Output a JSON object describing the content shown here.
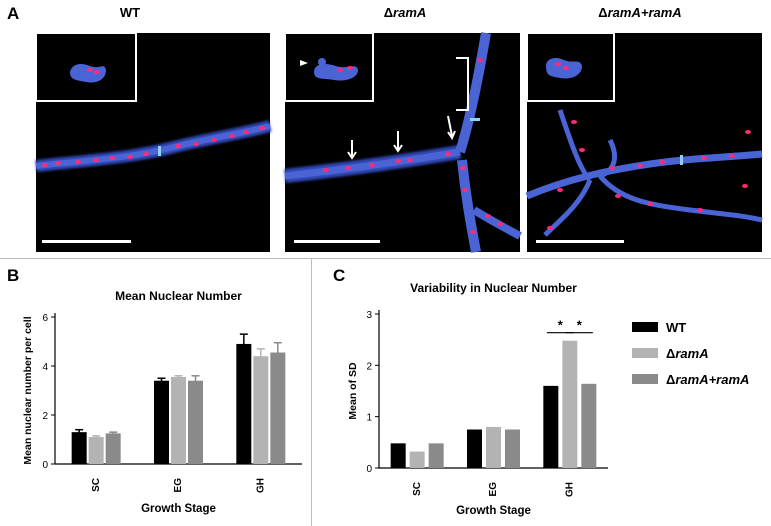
{
  "panel_a": {
    "letter": "A",
    "titles": [
      {
        "text": "WT",
        "italic": false
      },
      {
        "prefix": "Δ",
        "text": "ramA",
        "italic": true
      },
      {
        "prefix": "Δ",
        "text": "ramA+ramA",
        "italic": true
      }
    ]
  },
  "panel_b": {
    "letter": "B"
  },
  "panel_c": {
    "letter": "C"
  },
  "colors": {
    "wt": "#000000",
    "ramA": "#b3b3b3",
    "complement": "#8a8a8a",
    "hypha": "#3d56c8",
    "nucleus": "#ff2a7a"
  },
  "legend": [
    {
      "prefix": "",
      "text": "WT",
      "italic": false,
      "color": "#000000"
    },
    {
      "prefix": "Δ",
      "text": "ramA",
      "italic": true,
      "color": "#b3b3b3"
    },
    {
      "prefix": "Δ",
      "text": "ramA+ramA",
      "italic": true,
      "color": "#8a8a8a"
    }
  ],
  "chart_data": [
    {
      "type": "bar",
      "title": "Mean Nuclear Number",
      "xlabel": "Growth Stage",
      "ylabel": "Mean nuclear number per cell",
      "categories": [
        "SC",
        "EG",
        "GH"
      ],
      "ylim": [
        0,
        6
      ],
      "yticks": [
        0,
        2,
        4,
        6
      ],
      "series": [
        {
          "values": [
            1.3,
            3.4,
            4.9
          ],
          "errors": [
            0.1,
            0.1,
            0.4
          ]
        },
        {
          "values": [
            1.1,
            3.55,
            4.4
          ],
          "errors": [
            0.05,
            0.05,
            0.3
          ]
        },
        {
          "values": [
            1.25,
            3.4,
            4.55
          ],
          "errors": [
            0.05,
            0.2,
            0.4
          ]
        }
      ],
      "grid": false
    },
    {
      "type": "bar",
      "title": "Variability in Nuclear Number",
      "xlabel": "Growth Stage",
      "ylabel": "Mean of SD",
      "categories": [
        "SC",
        "EG",
        "GH"
      ],
      "ylim": [
        0,
        3
      ],
      "yticks": [
        0,
        1,
        2,
        3
      ],
      "series": [
        {
          "values": [
            0.48,
            0.75,
            1.6
          ]
        },
        {
          "values": [
            0.32,
            0.8,
            2.48
          ]
        },
        {
          "values": [
            0.48,
            0.75,
            1.64
          ]
        }
      ],
      "significance": [
        {
          "category": "GH",
          "from_series": 0,
          "to_series": 1,
          "label": "*"
        },
        {
          "category": "GH",
          "from_series": 1,
          "to_series": 2,
          "label": "*"
        }
      ],
      "legend_position": "right",
      "grid": false
    }
  ]
}
